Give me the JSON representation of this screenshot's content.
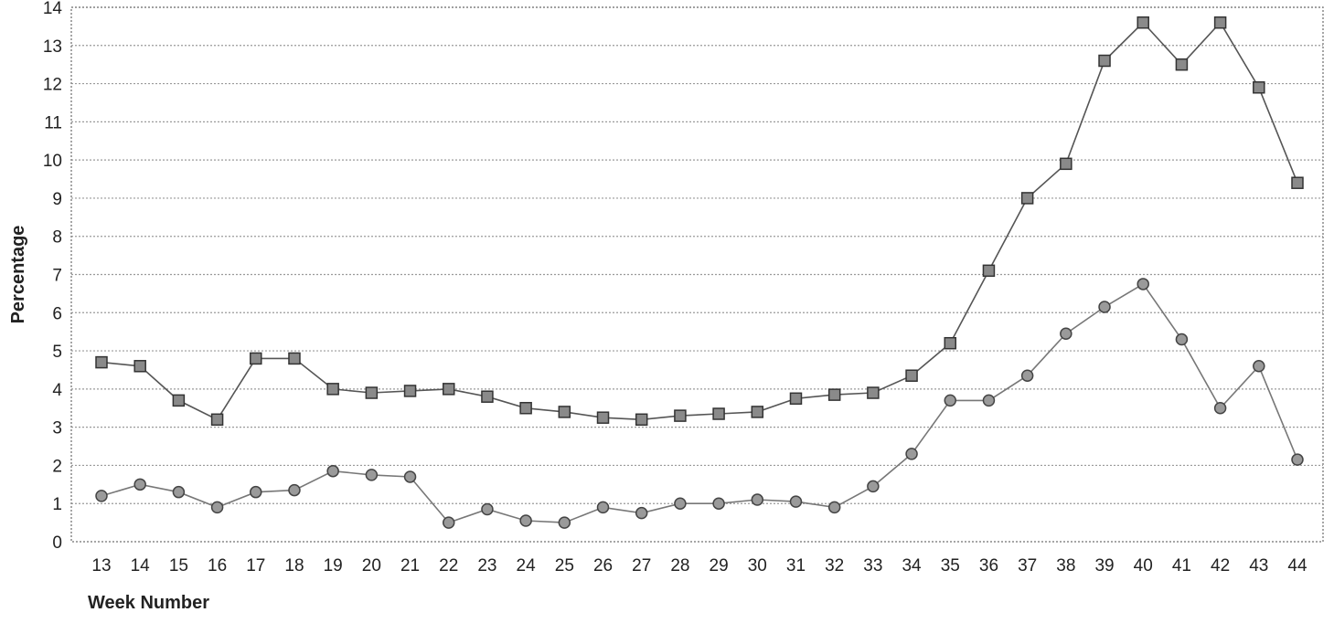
{
  "chart_data": {
    "type": "line",
    "title": "",
    "xlabel": "Week Number",
    "ylabel": "Percentage",
    "categories": [
      "13",
      "14",
      "15",
      "16",
      "17",
      "18",
      "19",
      "20",
      "21",
      "22",
      "23",
      "24",
      "25",
      "26",
      "27",
      "28",
      "29",
      "30",
      "31",
      "32",
      "33",
      "34",
      "35",
      "36",
      "37",
      "38",
      "39",
      "40",
      "41",
      "42",
      "43",
      "44"
    ],
    "ylim": [
      0,
      14
    ],
    "yticks": [
      "0",
      "1",
      "2",
      "3",
      "4",
      "5",
      "6",
      "7",
      "8",
      "9",
      "10",
      "11",
      "12",
      "13",
      "14"
    ],
    "grid": true,
    "legend": "none",
    "series": [
      {
        "marker": "square",
        "color": "#555555",
        "values": [
          4.7,
          4.6,
          3.7,
          3.2,
          4.8,
          4.8,
          4.0,
          3.9,
          3.95,
          4.0,
          3.8,
          3.5,
          3.4,
          3.25,
          3.2,
          3.3,
          3.35,
          3.4,
          3.75,
          3.85,
          3.9,
          4.35,
          5.2,
          7.1,
          9.0,
          9.9,
          12.6,
          13.6,
          12.5,
          13.6,
          11.9,
          9.4
        ]
      },
      {
        "marker": "circle",
        "color": "#777777",
        "values": [
          1.2,
          1.5,
          1.3,
          0.9,
          1.3,
          1.35,
          1.85,
          1.75,
          1.7,
          0.5,
          0.85,
          0.55,
          0.5,
          0.9,
          0.75,
          1.0,
          1.0,
          1.1,
          1.05,
          0.9,
          1.45,
          2.3,
          3.7,
          3.7,
          4.35,
          5.45,
          6.15,
          6.75,
          5.3,
          3.5,
          4.6,
          2.15
        ]
      }
    ]
  }
}
